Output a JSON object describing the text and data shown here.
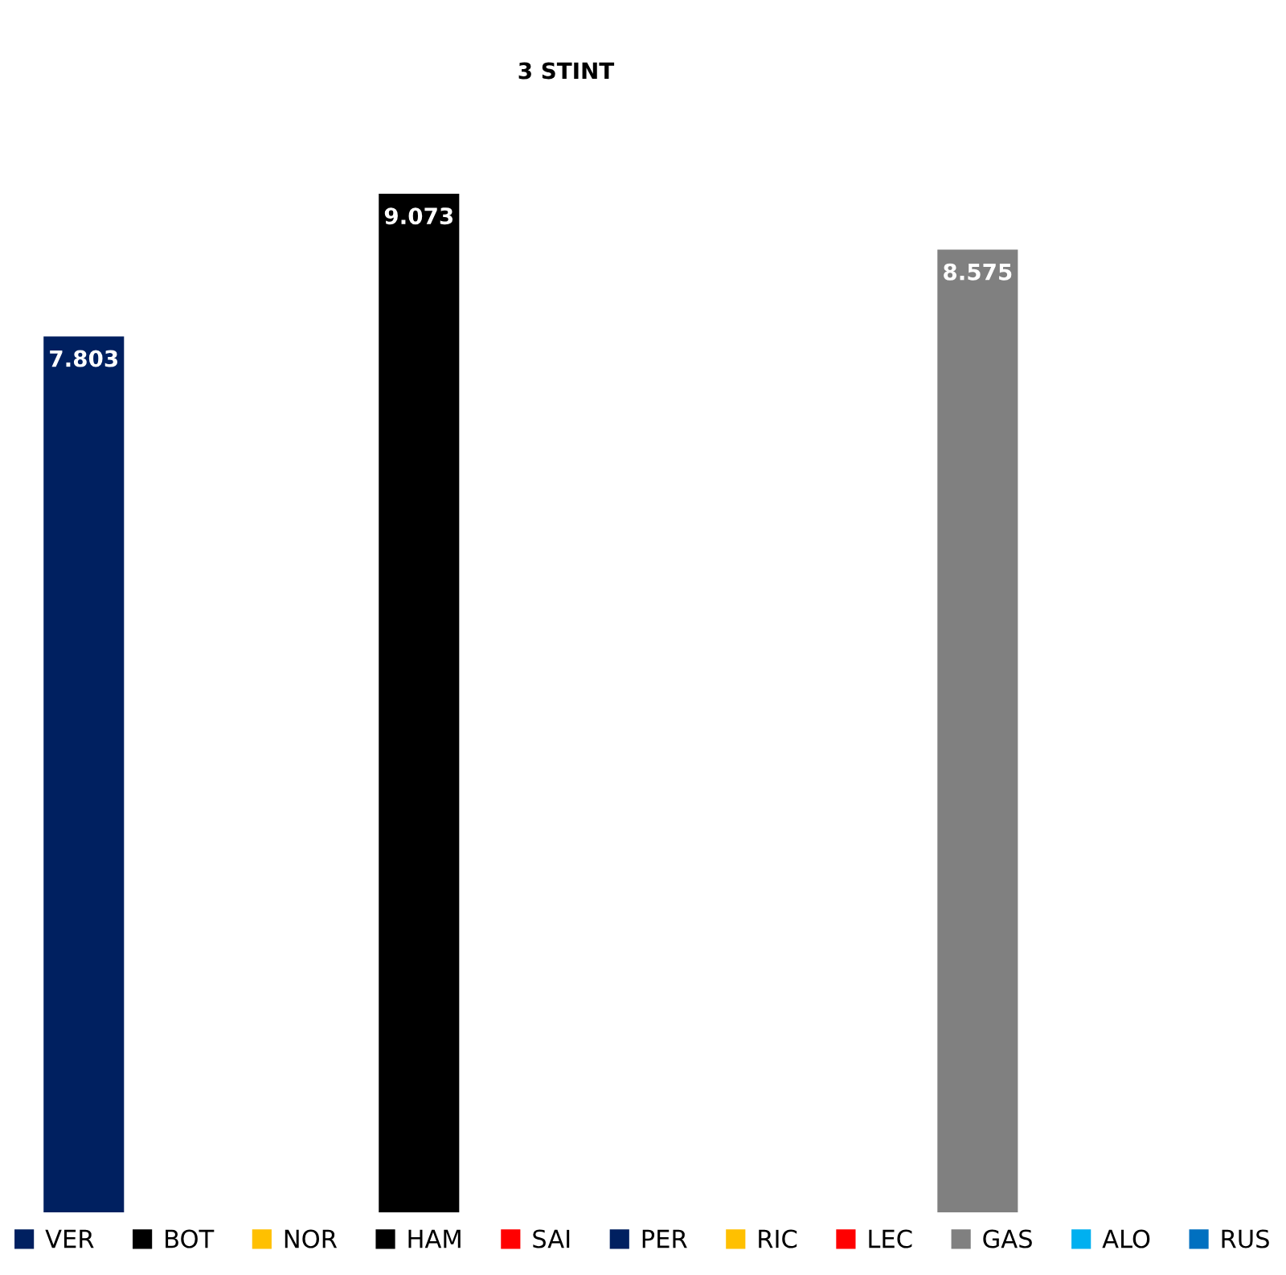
{
  "chart_data": {
    "type": "bar",
    "title": "3 STINT",
    "categories": [
      null
    ],
    "data_labels": true,
    "legend": "bottom",
    "series": [
      {
        "name": "VER",
        "color": "#002060",
        "values": [
          7.803
        ]
      },
      {
        "name": "BOT",
        "color": "#000000",
        "values": [
          null
        ]
      },
      {
        "name": "NOR",
        "color": "#ffc000",
        "values": [
          null
        ]
      },
      {
        "name": "HAM",
        "color": "#000000",
        "values": [
          9.073
        ]
      },
      {
        "name": "SAI",
        "color": "#ff0000",
        "values": [
          null
        ]
      },
      {
        "name": "PER",
        "color": "#002060",
        "values": [
          null
        ]
      },
      {
        "name": "RIC",
        "color": "#ffc000",
        "values": [
          null
        ]
      },
      {
        "name": "LEC",
        "color": "#ff0000",
        "values": [
          null
        ]
      },
      {
        "name": "GAS",
        "color": "#808080",
        "values": [
          8.575
        ]
      },
      {
        "name": "ALO",
        "color": "#00b0f0",
        "values": [
          null
        ]
      },
      {
        "name": "RUS",
        "color": "#0070c0",
        "values": [
          null
        ]
      }
    ]
  }
}
